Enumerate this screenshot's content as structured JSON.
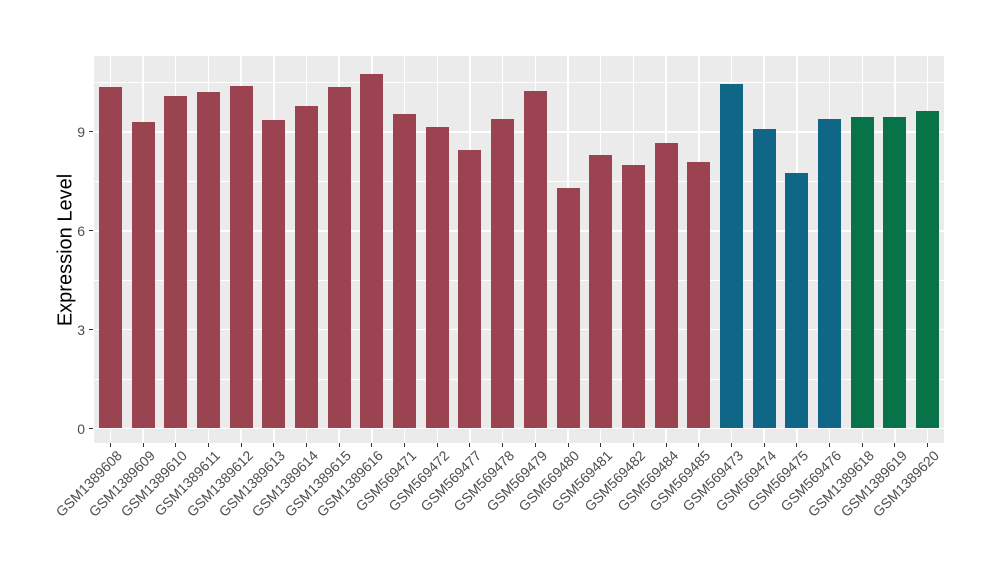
{
  "figure": {
    "background": "#FFFFFF"
  },
  "panel": {
    "background": "#EBEBEB",
    "gridline_color": "#FFFFFF"
  },
  "axes": {
    "y_title": "Expression Level",
    "y_tick_labels": [
      "0",
      "3",
      "6",
      "9"
    ],
    "tick_text_color": "#4D4D4D",
    "tick_mark_color": "#333333",
    "x_label_rotation_deg": 45
  },
  "chart_data": {
    "type": "bar",
    "title": "",
    "xlabel": "",
    "ylabel": "Expression Level",
    "ylim": [
      -0.45,
      11.3
    ],
    "yticks": [
      0,
      3,
      6,
      9
    ],
    "yticks_minor": [
      1.5,
      4.5,
      7.5,
      10.5
    ],
    "grid": true,
    "legend": "none",
    "categories": [
      "GSM1389608",
      "GSM1389609",
      "GSM1389610",
      "GSM1389611",
      "GSM1389612",
      "GSM1389613",
      "GSM1389614",
      "GSM1389615",
      "GSM1389616",
      "GSM569471",
      "GSM569472",
      "GSM569477",
      "GSM569478",
      "GSM569479",
      "GSM569480",
      "GSM569481",
      "GSM569482",
      "GSM569484",
      "GSM569485",
      "GSM569473",
      "GSM569474",
      "GSM569475",
      "GSM569476",
      "GSM1389618",
      "GSM1389619",
      "GSM1389620"
    ],
    "values": [
      10.35,
      9.3,
      10.1,
      10.2,
      10.4,
      9.35,
      9.8,
      10.35,
      10.75,
      9.55,
      9.15,
      8.45,
      9.4,
      10.25,
      7.3,
      8.3,
      8.0,
      8.65,
      8.1,
      10.45,
      9.1,
      7.75,
      9.4,
      9.45,
      9.45,
      9.65
    ],
    "bar_groups": [
      "group-A",
      "group-A",
      "group-A",
      "group-A",
      "group-A",
      "group-A",
      "group-A",
      "group-A",
      "group-A",
      "group-A",
      "group-A",
      "group-A",
      "group-A",
      "group-A",
      "group-A",
      "group-A",
      "group-A",
      "group-A",
      "group-A",
      "group-B",
      "group-B",
      "group-B",
      "group-B",
      "group-C",
      "group-C",
      "group-C"
    ],
    "group_colors": {
      "group-A": "#9C4351",
      "group-B": "#106687",
      "group-C": "#087248"
    }
  }
}
